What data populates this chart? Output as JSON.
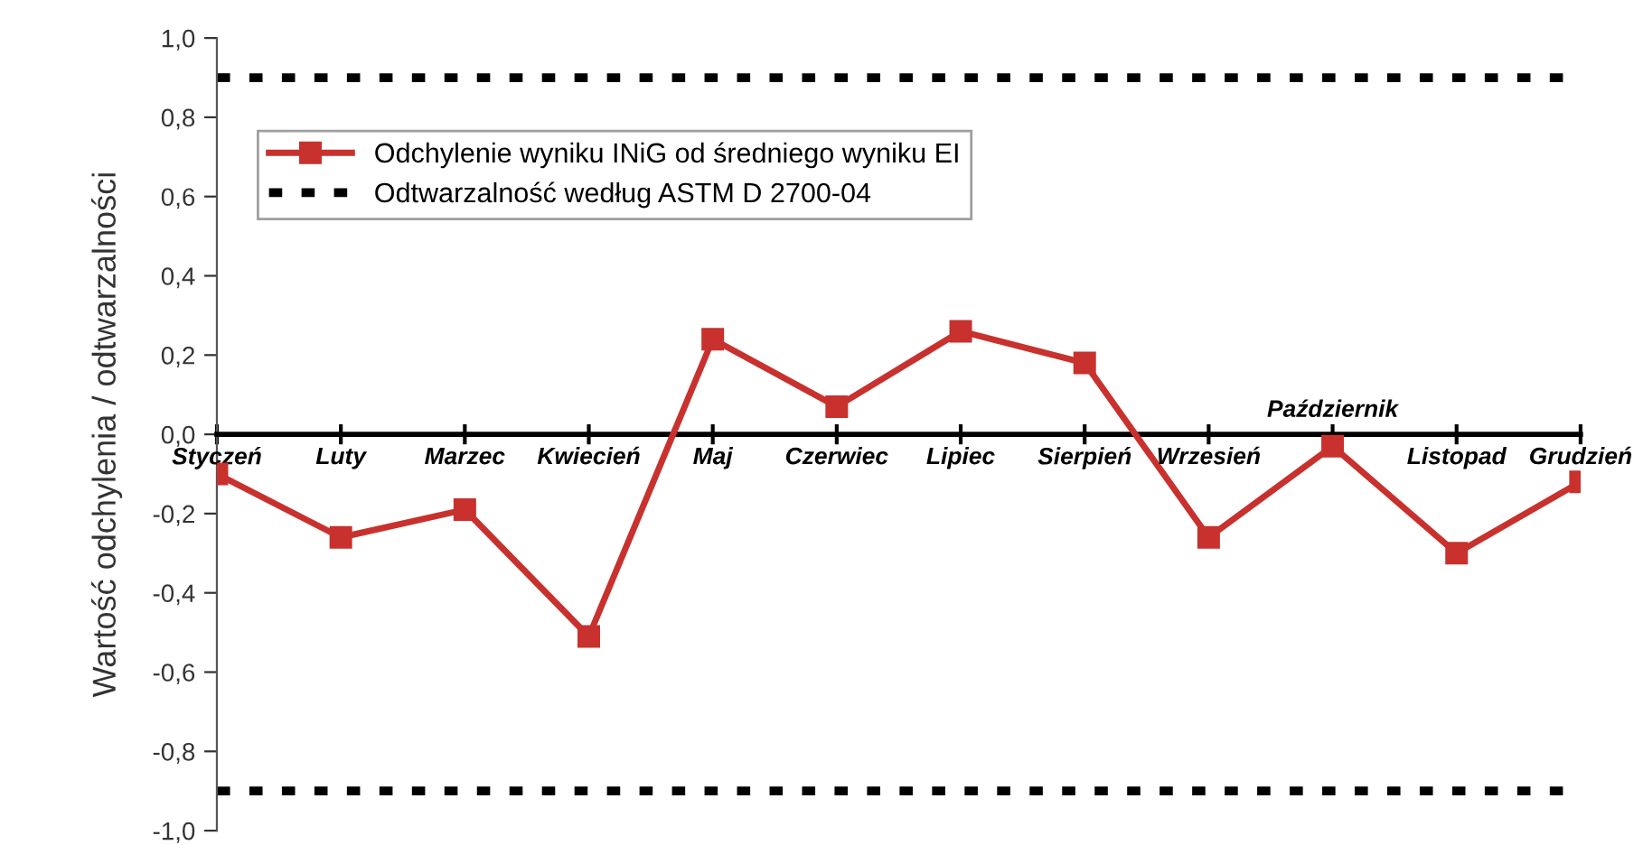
{
  "chart_data": {
    "type": "line",
    "ylabel": "Wartość odchylenia / odtwarzalności",
    "categories": [
      "Styczeń",
      "Luty",
      "Marzec",
      "Kwiecień",
      "Maj",
      "Czerwiec",
      "Lipiec",
      "Sierpień",
      "Wrzesień",
      "Październik",
      "Listopad",
      "Grudzień"
    ],
    "series": [
      {
        "name": "Odchylenie wyniku INiG od średniego wyniku EI",
        "color": "#c8312d",
        "values": [
          -0.1,
          -0.26,
          -0.19,
          -0.51,
          0.24,
          0.07,
          0.26,
          0.18,
          -0.26,
          -0.03,
          -0.3,
          -0.12
        ]
      }
    ],
    "ylim": [
      -1.0,
      1.0
    ],
    "yticks": [
      {
        "value": -1.0,
        "label": "-1,0"
      },
      {
        "value": -0.8,
        "label": "-0,8"
      },
      {
        "value": -0.6,
        "label": "-0,6"
      },
      {
        "value": -0.4,
        "label": "-0,4"
      },
      {
        "value": -0.2,
        "label": "-0,2"
      },
      {
        "value": 0.0,
        "label": "0,0"
      },
      {
        "value": 0.2,
        "label": "0,2"
      },
      {
        "value": 0.4,
        "label": "0,4"
      },
      {
        "value": 0.6,
        "label": "0,6"
      },
      {
        "value": 0.8,
        "label": "0,8"
      },
      {
        "value": 1.0,
        "label": "1,0"
      }
    ],
    "ref_lines": [
      {
        "axis": "y",
        "value": 0.9,
        "label": "Odtwarzalność według ASTM D 2700-04",
        "color": "#000000",
        "line_style": "dashed"
      },
      {
        "axis": "y",
        "value": -0.9,
        "color": "#000000",
        "line_style": "dashed"
      }
    ],
    "marker": "square",
    "line_style": "solid",
    "grid": false,
    "legend": "top left"
  }
}
